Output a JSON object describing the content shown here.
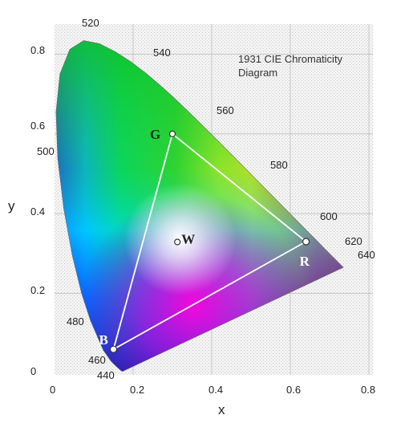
{
  "diagram": {
    "title_lines": [
      "1931 CIE Chromaticity",
      "Diagram"
    ],
    "x_axis_label": "x",
    "y_axis_label": "y",
    "x_ticks": [
      "0",
      "0.2",
      "0.4",
      "0.6",
      "0.8"
    ],
    "y_ticks": [
      "0",
      "0.2",
      "0.4",
      "0.6",
      "0.8"
    ],
    "wavelength_labels": [
      "440",
      "460",
      "480",
      "500",
      "520",
      "540",
      "560",
      "580",
      "600",
      "620",
      "640"
    ],
    "gamut_points": [
      {
        "label": "R",
        "x": 0.64,
        "y": 0.33
      },
      {
        "label": "G",
        "x": 0.3,
        "y": 0.6
      },
      {
        "label": "B",
        "x": 0.15,
        "y": 0.06
      }
    ],
    "white_point": {
      "label": "W",
      "x": 0.3127,
      "y": 0.329
    }
  }
}
